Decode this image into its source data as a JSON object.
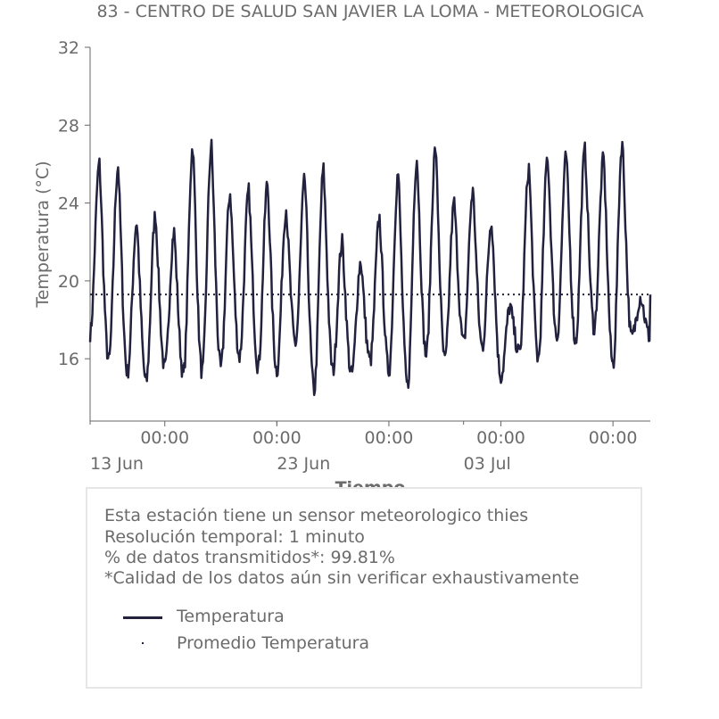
{
  "title": "83 - CENTRO DE SALUD SAN JAVIER LA LOMA - METEOROLOGICA",
  "info": {
    "lines": [
      "Esta estación tiene un sensor meteorologico thies",
      "Resolución temporal: 1 minuto",
      "% de datos transmitidos*: 99.81%",
      "*Calidad de los datos aún sin verificar exhaustivamente"
    ],
    "legend": [
      {
        "label": "Temperatura",
        "style": "line"
      },
      {
        "label": "Promedio Temperatura",
        "style": "dotted"
      }
    ]
  },
  "colors": {
    "series": "#22223f",
    "text": "#6b6b6b",
    "axis": "#666666"
  },
  "chart_data": {
    "type": "line",
    "title": "83 - CENTRO DE SALUD SAN JAVIER LA LOMA - METEOROLOGICA",
    "xlabel": "Tiempo",
    "ylabel": "Temperatura (°C)",
    "ylim": [
      12.8,
      32
    ],
    "yticks": [
      16,
      20,
      24,
      28,
      32
    ],
    "xlim": [
      "2025-06-13",
      "2025-07-13"
    ],
    "x_major_ticks": [
      {
        "date": "2025-06-17",
        "label": "00:00"
      },
      {
        "date": "2025-06-23",
        "label": "00:00"
      },
      {
        "date": "2025-06-29",
        "label": "00:00"
      },
      {
        "date": "2025-07-05",
        "label": "00:00"
      },
      {
        "date": "2025-07-11",
        "label": "00:00"
      }
    ],
    "x_date_labels": [
      {
        "date": "2025-06-13",
        "label": "13 Jun"
      },
      {
        "date": "2025-06-23",
        "label": "23 Jun"
      },
      {
        "date": "2025-07-03",
        "label": "03 Jul"
      }
    ],
    "grid": false,
    "mean": 19.3,
    "series": [
      {
        "name": "Temperatura",
        "daily_max": [
          26.0,
          25.9,
          23.0,
          23.4,
          22.5,
          26.9,
          26.9,
          24.5,
          24.6,
          25.0,
          23.7,
          25.2,
          25.7,
          22.0,
          21.0,
          23.2,
          25.5,
          26.3,
          26.8,
          24.0,
          24.6,
          23.1,
          18.7,
          25.8,
          26.4,
          26.4,
          26.7,
          26.3,
          27.1,
          19.2
        ],
        "daily_min": [
          17.3,
          15.9,
          15.3,
          14.8,
          15.5,
          15.2,
          15.3,
          15.5,
          16.1,
          15.6,
          15.4,
          16.8,
          14.4,
          15.4,
          15.2,
          15.9,
          15.4,
          14.6,
          16.2,
          15.9,
          16.8,
          16.6,
          15.1,
          16.3,
          16.0,
          17.1,
          16.9,
          17.6,
          15.7,
          17.1
        ]
      },
      {
        "name": "Promedio Temperatura",
        "values": [
          19.3
        ]
      }
    ]
  }
}
